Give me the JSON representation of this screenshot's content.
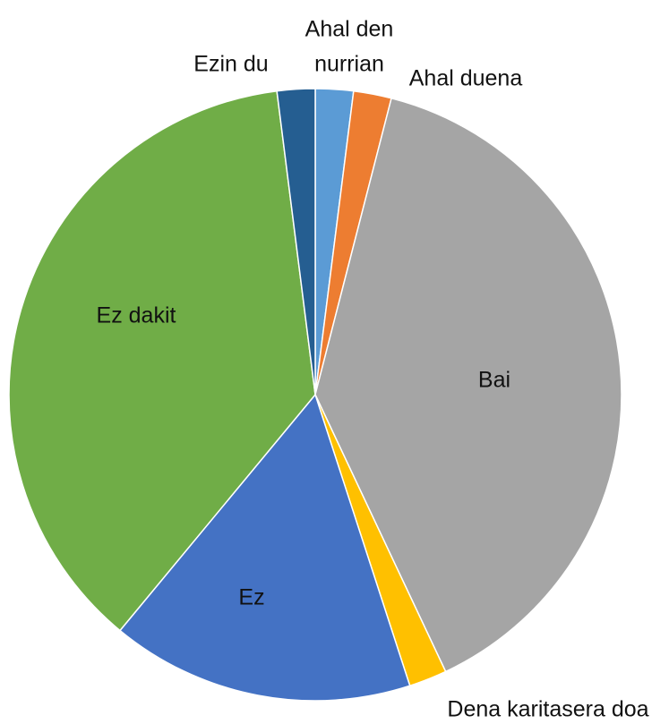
{
  "chart_data": {
    "type": "pie",
    "categories": [
      "Ahal den nurrian",
      "Ahal duena",
      "Bai",
      "Dena karitasera doa",
      "Ez",
      "Ez dakit",
      "Ezin du"
    ],
    "values": [
      2,
      2,
      39,
      2,
      16,
      37,
      2
    ],
    "colors": [
      "#5b9bd5",
      "#ed7d31",
      "#a5a5a5",
      "#ffc000",
      "#4472c4",
      "#70ad47",
      "#255e91"
    ]
  }
}
